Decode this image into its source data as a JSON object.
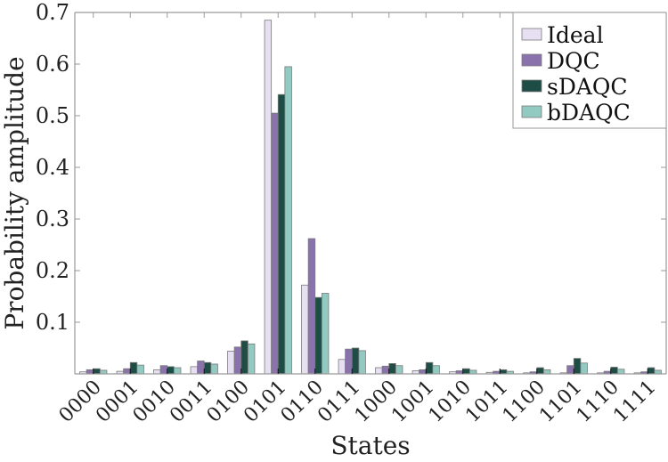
{
  "chart_data": {
    "type": "bar",
    "title": "",
    "xlabel": "States",
    "ylabel": "Probability amplitude",
    "ylim": [
      0,
      0.7
    ],
    "yticks": [
      0.1,
      0.2,
      0.3,
      0.4,
      0.5,
      0.6,
      0.7
    ],
    "ytick_labels": [
      "0.1",
      "0.2",
      "0.3",
      "0.4",
      "0.5",
      "0.6",
      "0.7"
    ],
    "grid": false,
    "legend_position": "upper right",
    "categories": [
      "0000",
      "0001",
      "0010",
      "0011",
      "0100",
      "0101",
      "0110",
      "0111",
      "1000",
      "1001",
      "1010",
      "1011",
      "1100",
      "1101",
      "1110",
      "1111"
    ],
    "series": [
      {
        "name": "Ideal",
        "color": "#e6e0f2",
        "values": [
          0.004,
          0.005,
          0.008,
          0.014,
          0.044,
          0.685,
          0.172,
          0.028,
          0.012,
          0.006,
          0.004,
          0.003,
          0.002,
          0.002,
          0.002,
          0.002
        ]
      },
      {
        "name": "DQC",
        "color": "#8a72ac",
        "values": [
          0.008,
          0.01,
          0.016,
          0.025,
          0.052,
          0.505,
          0.262,
          0.048,
          0.015,
          0.008,
          0.006,
          0.005,
          0.004,
          0.016,
          0.005,
          0.004
        ]
      },
      {
        "name": "sDAQC",
        "color": "#1d4d45",
        "values": [
          0.01,
          0.022,
          0.014,
          0.022,
          0.064,
          0.541,
          0.148,
          0.05,
          0.02,
          0.022,
          0.01,
          0.008,
          0.012,
          0.03,
          0.013,
          0.012
        ]
      },
      {
        "name": "bDAQC",
        "color": "#92c9c0",
        "values": [
          0.007,
          0.017,
          0.012,
          0.019,
          0.058,
          0.595,
          0.156,
          0.045,
          0.016,
          0.016,
          0.007,
          0.005,
          0.008,
          0.021,
          0.009,
          0.007
        ]
      }
    ]
  },
  "style": {
    "axis_color": "#9a9a9a",
    "bar_edge_color": "#7a7a7a"
  }
}
